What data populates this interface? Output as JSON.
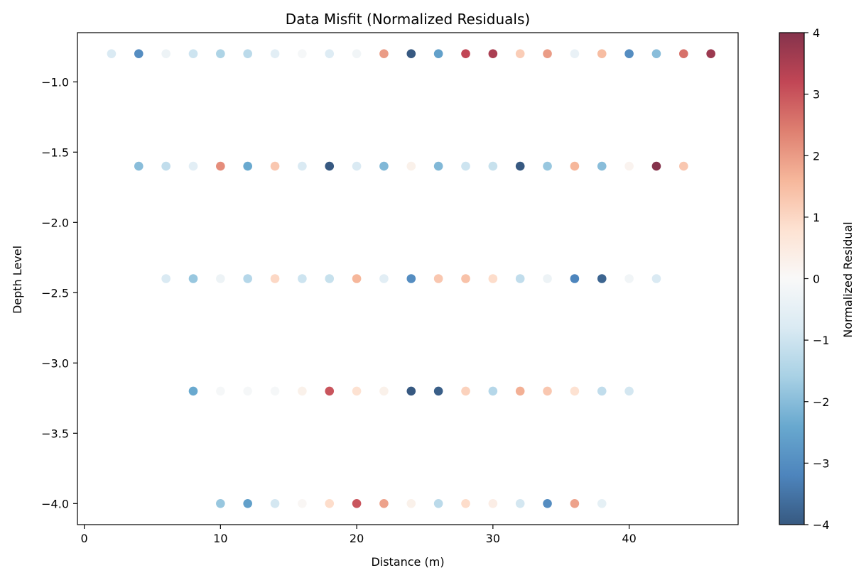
{
  "chart_data": {
    "type": "scatter",
    "title": "Data Misfit (Normalized Residuals)",
    "xlabel": "Distance (m)",
    "ylabel": "Depth Level",
    "xlim": [
      -0.5,
      48
    ],
    "ylim": [
      -4.15,
      -0.65
    ],
    "xticks": [
      0,
      10,
      20,
      30,
      40
    ],
    "yticks": [
      -1.0,
      -1.5,
      -2.0,
      -2.5,
      -3.0,
      -3.5,
      -4.0
    ],
    "ytick_labels": [
      "−1.0",
      "−1.5",
      "−2.0",
      "−2.5",
      "−3.0",
      "−3.5",
      "−4.0"
    ],
    "grid": false,
    "colorbar": {
      "label": "Normalized Residual",
      "colormap": "RdBu_r",
      "range": [
        -4,
        4
      ],
      "ticks": [
        4,
        3,
        2,
        1,
        0,
        -1,
        -2,
        -3,
        -4
      ],
      "tick_labels": [
        "4",
        "3",
        "2",
        "1",
        "0",
        "−1",
        "−2",
        "−3",
        "−4"
      ]
    },
    "series": [
      {
        "y": -0.8,
        "x": [
          2,
          4,
          6,
          8,
          10,
          12,
          14,
          16,
          18,
          20,
          22,
          24,
          26,
          28,
          30,
          32,
          34,
          36,
          38,
          40,
          42,
          44,
          46
        ],
        "residual": [
          -0.8,
          -3.0,
          -0.3,
          -1.0,
          -1.5,
          -1.3,
          -0.6,
          -0.1,
          -0.7,
          -0.2,
          2.0,
          -4.0,
          -2.6,
          3.2,
          3.5,
          1.2,
          2.0,
          -0.4,
          1.5,
          -3.0,
          -2.0,
          2.6,
          3.7
        ]
      },
      {
        "y": -1.6,
        "x": [
          4,
          6,
          8,
          10,
          12,
          14,
          16,
          18,
          20,
          22,
          24,
          26,
          28,
          30,
          32,
          34,
          36,
          38,
          40,
          42,
          44
        ],
        "residual": [
          -2.0,
          -1.2,
          -0.6,
          2.2,
          -2.4,
          1.3,
          -0.8,
          -4.0,
          -0.8,
          -2.1,
          0.3,
          -2.1,
          -1.0,
          -1.1,
          -4.0,
          -1.8,
          1.6,
          -2.0,
          0.2,
          4.0,
          1.3
        ]
      },
      {
        "y": -2.4,
        "x": [
          6,
          8,
          10,
          12,
          14,
          16,
          18,
          20,
          22,
          24,
          26,
          28,
          30,
          32,
          34,
          36,
          38,
          40,
          42
        ],
        "residual": [
          -0.8,
          -1.8,
          -0.3,
          -1.4,
          1.0,
          -1.0,
          -1.1,
          1.6,
          -0.6,
          -3.0,
          1.3,
          1.4,
          0.9,
          -1.2,
          -0.3,
          -3.2,
          -3.8,
          -0.2,
          -0.8
        ]
      },
      {
        "y": -3.2,
        "x": [
          8,
          10,
          12,
          14,
          16,
          18,
          20,
          22,
          24,
          26,
          28,
          30,
          32,
          34,
          36,
          38,
          40
        ],
        "residual": [
          -2.4,
          -0.1,
          -0.1,
          -0.1,
          0.3,
          3.0,
          0.8,
          0.3,
          -4.0,
          -3.9,
          1.1,
          -1.4,
          1.7,
          1.3,
          0.8,
          -1.2,
          -0.9
        ]
      },
      {
        "y": -4.0,
        "x": [
          10,
          12,
          14,
          16,
          18,
          20,
          22,
          24,
          26,
          28,
          30,
          32,
          34,
          36,
          38
        ],
        "residual": [
          -1.8,
          -2.6,
          -0.9,
          0.1,
          0.9,
          3.0,
          1.9,
          0.3,
          -1.3,
          0.9,
          0.4,
          -0.9,
          -3.0,
          1.9,
          -0.5
        ]
      }
    ]
  }
}
